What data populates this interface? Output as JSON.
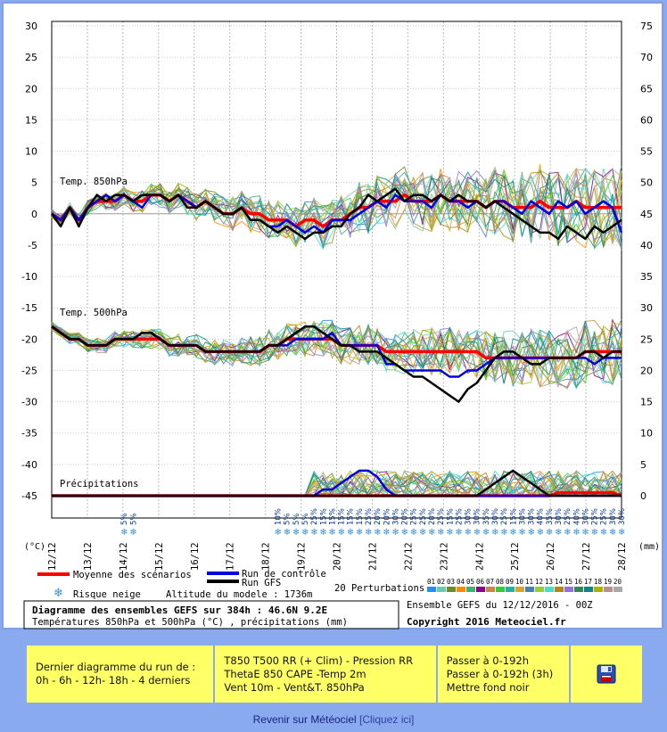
{
  "chart_data": {
    "type": "line",
    "title": "Diagramme des ensembles GEFS sur 384h : 46.6N 9.2E",
    "subtitle": "Températures 850hPa et 500hPa (°C) , précipitations (mm)",
    "run_info": "Ensemble GEFS du 12/12/2016 - 00Z",
    "copyright": "Copyright 2016 Meteociel.fr",
    "left_axis_unit": "(°C)",
    "right_axis_unit": "(mm)",
    "left_ticks": [
      30,
      25,
      20,
      15,
      10,
      5,
      0,
      -5,
      -10,
      -15,
      -20,
      -25,
      -30,
      -35,
      -40,
      -45
    ],
    "right_ticks": [
      75,
      70,
      65,
      60,
      55,
      50,
      45,
      40,
      35,
      30,
      25,
      20,
      15,
      10,
      5,
      0
    ],
    "ylim": [
      -45,
      30
    ],
    "x_labels": [
      "12/12",
      "13/12",
      "14/12",
      "15/12",
      "16/12",
      "17/12",
      "18/12",
      "19/12",
      "20/12",
      "21/12",
      "22/12",
      "23/12",
      "24/12",
      "25/12",
      "26/12",
      "27/12",
      "28/12"
    ],
    "section_labels": {
      "t850": "Temp. 850hPa",
      "t500": "Temp. 500hPa",
      "precip": "Précipitations"
    },
    "n_steps": 64,
    "series": [
      {
        "name": "Moyenne des scénarios",
        "group": "t850",
        "color": "#ff0000",
        "width": 3.5,
        "values": [
          0,
          -1,
          1,
          -1,
          1,
          2,
          2,
          2,
          3,
          2,
          2,
          3,
          3,
          2,
          3,
          2,
          1,
          2,
          1,
          0,
          0,
          1,
          0,
          0,
          -1,
          -1,
          -1,
          -2,
          -1,
          -1,
          -2,
          -1,
          -1,
          0,
          1,
          1,
          2,
          2,
          2,
          3,
          2,
          2,
          2,
          3,
          2,
          2,
          2,
          2,
          1,
          2,
          2,
          1,
          1,
          1,
          2,
          1,
          1,
          1,
          2,
          1,
          1,
          1,
          1,
          1
        ]
      },
      {
        "name": "Run de contrôle",
        "group": "t850",
        "color": "#0000dd",
        "width": 2.5,
        "values": [
          0,
          -1,
          1,
          -1,
          1,
          2,
          3,
          2,
          3,
          2,
          1,
          3,
          3,
          2,
          3,
          2,
          1,
          2,
          1,
          0,
          0,
          1,
          -1,
          -1,
          -2,
          -2,
          -1,
          -2,
          -3,
          -2,
          -3,
          -1,
          -1,
          -1,
          0,
          1,
          2,
          1,
          3,
          2,
          2,
          2,
          1,
          3,
          2,
          2,
          1,
          2,
          1,
          2,
          2,
          1,
          0,
          2,
          1,
          0,
          2,
          1,
          2,
          0,
          1,
          2,
          1,
          -3
        ]
      },
      {
        "name": "Run GFS",
        "group": "t850",
        "color": "#000000",
        "width": 2.5,
        "values": [
          0,
          -2,
          1,
          -2,
          1,
          3,
          2,
          3,
          3,
          2,
          3,
          3,
          3,
          2,
          3,
          1,
          1,
          2,
          1,
          0,
          0,
          1,
          -1,
          -1,
          -2,
          -3,
          -2,
          -3,
          -4,
          -3,
          -3,
          -2,
          -2,
          0,
          1,
          3,
          2,
          3,
          4,
          2,
          3,
          3,
          2,
          3,
          2,
          3,
          2,
          2,
          1,
          2,
          1,
          0,
          -1,
          -2,
          -3,
          -3,
          -4,
          -2,
          -3,
          -4,
          -2,
          -3,
          -2,
          -1
        ]
      },
      {
        "name": "Moyenne des scénarios",
        "group": "t500",
        "color": "#ff0000",
        "width": 3.5,
        "values": [
          -18,
          -19,
          -20,
          -20,
          -21,
          -21,
          -21,
          -20,
          -20,
          -20,
          -20,
          -20,
          -20,
          -21,
          -21,
          -21,
          -21,
          -22,
          -22,
          -22,
          -22,
          -22,
          -22,
          -22,
          -21,
          -21,
          -20,
          -20,
          -20,
          -20,
          -20,
          -20,
          -21,
          -21,
          -21,
          -21,
          -21,
          -22,
          -22,
          -22,
          -22,
          -22,
          -22,
          -22,
          -22,
          -22,
          -22,
          -22,
          -23,
          -23,
          -23,
          -23,
          -23,
          -23,
          -23,
          -23,
          -23,
          -23,
          -23,
          -22,
          -22,
          -22,
          -22,
          -22
        ]
      },
      {
        "name": "Run de contrôle",
        "group": "t500",
        "color": "#0000dd",
        "width": 2.5,
        "values": [
          -18,
          -19,
          -20,
          -20,
          -21,
          -21,
          -21,
          -20,
          -20,
          -20,
          -19,
          -19,
          -20,
          -21,
          -21,
          -21,
          -21,
          -22,
          -22,
          -22,
          -22,
          -22,
          -22,
          -22,
          -21,
          -21,
          -21,
          -20,
          -20,
          -20,
          -20,
          -19,
          -21,
          -21,
          -21,
          -21,
          -21,
          -24,
          -24,
          -25,
          -25,
          -25,
          -25,
          -25,
          -26,
          -26,
          -25,
          -25,
          -24,
          -23,
          -23,
          -23,
          -23,
          -23,
          -23,
          -23,
          -23,
          -23,
          -23,
          -23,
          -24,
          -23,
          -23,
          -23
        ]
      },
      {
        "name": "Run GFS",
        "group": "t500",
        "color": "#000000",
        "width": 2.5,
        "values": [
          -18,
          -19,
          -20,
          -20,
          -21,
          -21,
          -21,
          -20,
          -20,
          -20,
          -19,
          -19,
          -20,
          -21,
          -21,
          -21,
          -21,
          -22,
          -22,
          -22,
          -22,
          -22,
          -22,
          -22,
          -21,
          -21,
          -20,
          -19,
          -18,
          -18,
          -19,
          -20,
          -21,
          -21,
          -22,
          -22,
          -22,
          -23,
          -24,
          -25,
          -26,
          -26,
          -27,
          -28,
          -29,
          -30,
          -28,
          -27,
          -25,
          -23,
          -22,
          -22,
          -23,
          -24,
          -24,
          -23,
          -23,
          -23,
          -23,
          -22,
          -22,
          -23,
          -22,
          -22
        ]
      },
      {
        "name": "Moyenne des scénarios",
        "group": "precip",
        "color": "#ff0000",
        "width": 3.5,
        "values": [
          0,
          0,
          0,
          0,
          0,
          0,
          0,
          0,
          0,
          0,
          0,
          0,
          0,
          0,
          0,
          0,
          0,
          0,
          0,
          0,
          0,
          0,
          0,
          0,
          0,
          0,
          0,
          0,
          0,
          0,
          0,
          0,
          0,
          0,
          0,
          0,
          0,
          0,
          0,
          0,
          0,
          0,
          0,
          0,
          0,
          0,
          0,
          0,
          0,
          0,
          0,
          0,
          0,
          0,
          0,
          0,
          0.5,
          0.5,
          0.5,
          0.5,
          0.5,
          0.5,
          0.5,
          0
        ]
      },
      {
        "name": "Run de contrôle",
        "group": "precip",
        "color": "#0000dd",
        "width": 2.5,
        "values": [
          0,
          0,
          0,
          0,
          0,
          0,
          0,
          0,
          0,
          0,
          0,
          0,
          0,
          0,
          0,
          0,
          0,
          0,
          0,
          0,
          0,
          0,
          0,
          0,
          0,
          0,
          0,
          0,
          0,
          0,
          1,
          1,
          2,
          3,
          4,
          4,
          3,
          1,
          0,
          0,
          0,
          0,
          0,
          0,
          0,
          0,
          0,
          0,
          0,
          0,
          0,
          0,
          0,
          0,
          0,
          0,
          0,
          0,
          0,
          0,
          0,
          0,
          0,
          0
        ]
      },
      {
        "name": "Run GFS",
        "group": "precip",
        "color": "#000000",
        "width": 2.5,
        "values": [
          0,
          0,
          0,
          0,
          0,
          0,
          0,
          0,
          0,
          0,
          0,
          0,
          0,
          0,
          0,
          0,
          0,
          0,
          0,
          0,
          0,
          0,
          0,
          0,
          0,
          0,
          0,
          0,
          0,
          0,
          0,
          0,
          0,
          0,
          0,
          0,
          0,
          0,
          0,
          0,
          0,
          0,
          0,
          0,
          0,
          0,
          0,
          0,
          1,
          2,
          3,
          4,
          3,
          2,
          1,
          0,
          0,
          0,
          0,
          0,
          0,
          0,
          0,
          0
        ]
      }
    ],
    "snow_risk": [
      {
        "step": 8,
        "pct": "5%"
      },
      {
        "step": 9,
        "pct": "5%"
      },
      {
        "step": 25,
        "pct": "10%"
      },
      {
        "step": 26,
        "pct": "5%"
      },
      {
        "step": 27,
        "pct": "5%"
      },
      {
        "step": 28,
        "pct": "5%"
      },
      {
        "step": 29,
        "pct": "25%"
      },
      {
        "step": 30,
        "pct": "15%"
      },
      {
        "step": 31,
        "pct": "15%"
      },
      {
        "step": 32,
        "pct": "15%"
      },
      {
        "step": 33,
        "pct": "15%"
      },
      {
        "step": 34,
        "pct": "15%"
      },
      {
        "step": 35,
        "pct": "25%"
      },
      {
        "step": 36,
        "pct": "20%"
      },
      {
        "step": 37,
        "pct": "20%"
      },
      {
        "step": 38,
        "pct": "30%"
      },
      {
        "step": 39,
        "pct": "20%"
      },
      {
        "step": 40,
        "pct": "25%"
      },
      {
        "step": 41,
        "pct": "25%"
      },
      {
        "step": 42,
        "pct": "20%"
      },
      {
        "step": 43,
        "pct": "25%"
      },
      {
        "step": 44,
        "pct": "15%"
      },
      {
        "step": 45,
        "pct": "25%"
      },
      {
        "step": 46,
        "pct": "30%"
      },
      {
        "step": 47,
        "pct": "30%"
      },
      {
        "step": 48,
        "pct": "35%"
      },
      {
        "step": 49,
        "pct": "30%"
      },
      {
        "step": 50,
        "pct": "25%"
      },
      {
        "step": 51,
        "pct": "15%"
      },
      {
        "step": 52,
        "pct": "30%"
      },
      {
        "step": 53,
        "pct": "30%"
      },
      {
        "step": 54,
        "pct": "40%"
      },
      {
        "step": 55,
        "pct": "35%"
      },
      {
        "step": 56,
        "pct": "30%"
      },
      {
        "step": 57,
        "pct": "25%"
      },
      {
        "step": 58,
        "pct": "40%"
      },
      {
        "step": 59,
        "pct": "30%"
      },
      {
        "step": 60,
        "pct": "25%"
      },
      {
        "step": 61,
        "pct": "25%"
      },
      {
        "step": 62,
        "pct": "30%"
      },
      {
        "step": 63,
        "pct": "30%"
      }
    ],
    "legend": {
      "mean": "Moyenne des scénarios",
      "control": "Run de contrôle",
      "gfs": "Run GFS",
      "snow": "Risque neige",
      "altitude": "Altitude du modele : 1736m",
      "perturbations": "20 Perturbations",
      "perturbation_ids": [
        "01",
        "02",
        "03",
        "04",
        "05",
        "06",
        "07",
        "08",
        "09",
        "10",
        "11",
        "12",
        "13",
        "14",
        "15",
        "16",
        "17",
        "18",
        "19",
        "20"
      ],
      "perturbation_colors": [
        "#1e90ff",
        "#66cdaa",
        "#6b8e23",
        "#ff8c00",
        "#3cb371",
        "#8b008b",
        "#cd853f",
        "#32cd32",
        "#20b2aa",
        "#daa520",
        "#4682b4",
        "#9acd32",
        "#40e0d0",
        "#b8860b",
        "#9370db",
        "#2e8b57",
        "#008b8b",
        "#b0b000",
        "#bc8f8f",
        "#a9a9a9"
      ]
    }
  },
  "nav": {
    "cell1": {
      "line1": "Dernier diagramme du run de :",
      "line2": "0h - 6h - 12h- 18h - 4 derniers"
    },
    "cell2": {
      "line1": "T850 T500 RR (+ Clim) - Pression RR",
      "line2": "ThetaE 850 CAPE -Temp 2m",
      "line3": "Vent 10m - Vent&T. 850hPa"
    },
    "cell3": {
      "line1": "Passer à 0-192h",
      "line2": "Passer à 0-192h (3h)",
      "line3": "Mettre fond noir"
    },
    "save_icon": "floppy-disk-icon"
  },
  "footer": {
    "text": "Revenir sur Météociel",
    "cta": "[Cliquez ici]"
  }
}
